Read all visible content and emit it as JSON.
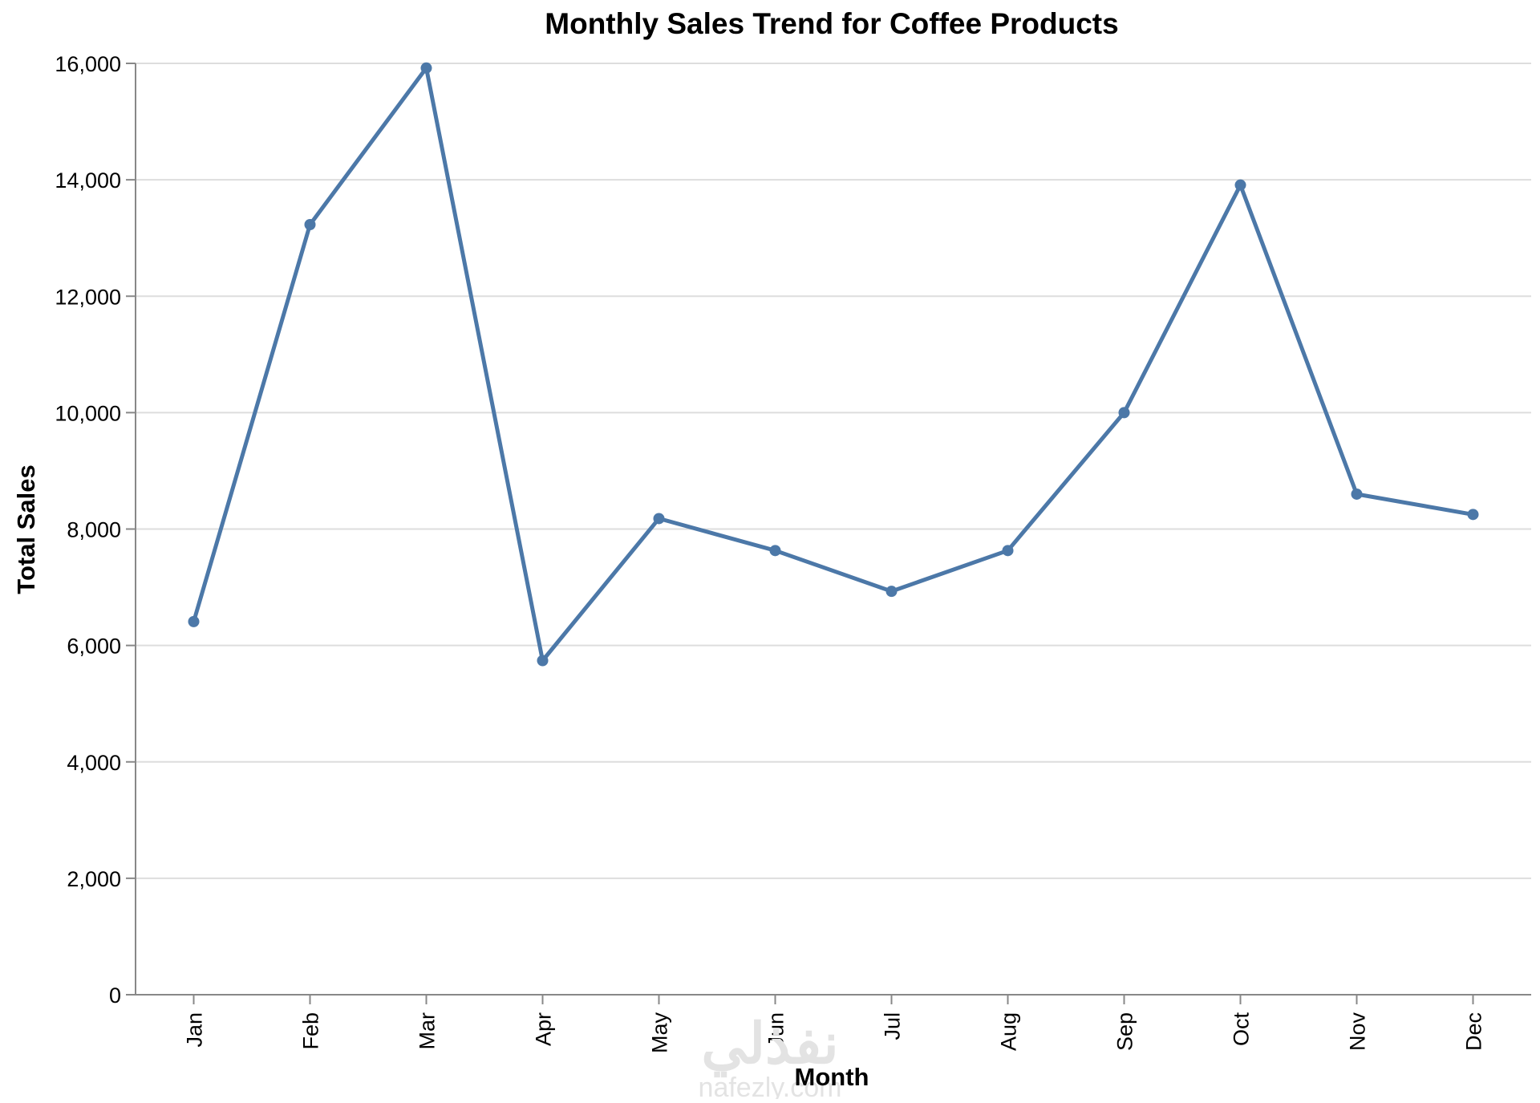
{
  "chart_data": {
    "type": "line",
    "title": "Monthly Sales Trend for Coffee Products",
    "xlabel": "Month",
    "ylabel": "Total Sales",
    "categories": [
      "Jan",
      "Feb",
      "Mar",
      "Apr",
      "May",
      "Jun",
      "Jul",
      "Aug",
      "Sep",
      "Oct",
      "Nov",
      "Dec"
    ],
    "series": [
      {
        "values": [
          6410,
          13230,
          15920,
          5740,
          8180,
          7630,
          6930,
          7630,
          10000,
          13910,
          8600,
          8250
        ]
      }
    ],
    "ylim": [
      0,
      16000
    ],
    "yticks": [
      0,
      2000,
      4000,
      6000,
      8000,
      10000,
      12000,
      14000,
      16000
    ],
    "ytick_labels": [
      "0",
      "2,000",
      "4,000",
      "6,000",
      "8,000",
      "10,000",
      "12,000",
      "14,000",
      "16,000"
    ],
    "grid": true,
    "legend": "none",
    "colors": {
      "line": "#4c78a8",
      "grid": "#dddddd",
      "axis": "#888888",
      "text": "#000000",
      "watermark": "#d9d9d9"
    }
  },
  "watermark": {
    "logo_text": "نفذلي",
    "url_text": "nafezly.com"
  }
}
